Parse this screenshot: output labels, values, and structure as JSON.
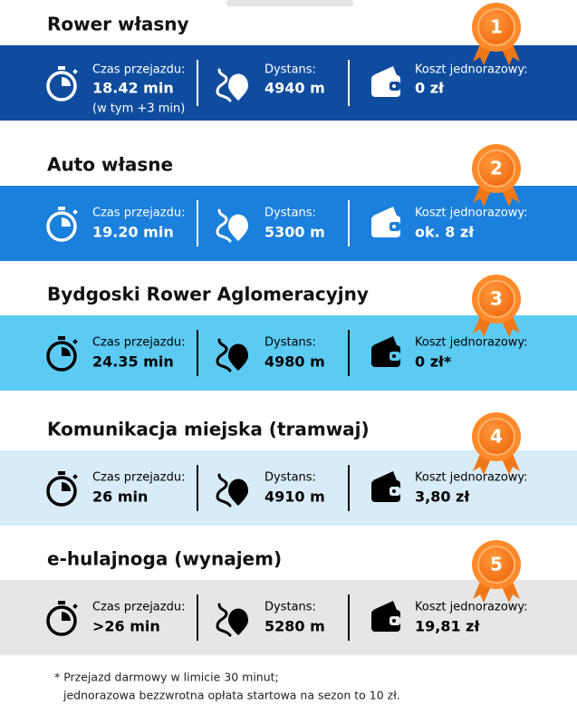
{
  "items": [
    {
      "rank": "1",
      "title": "Rower własny",
      "time_label": "Czas przejazdu:",
      "time": "18.42 min",
      "time_note": "(w tym +3 min)",
      "distance_label": "Dystans:",
      "distance": "4940 m",
      "cost_label": "Koszt jednorazowy:",
      "cost": "0 zł"
    },
    {
      "rank": "2",
      "title": "Auto własne",
      "time_label": "Czas przejazdu:",
      "time": "19.20 min",
      "distance_label": "Dystans:",
      "distance": "5300 m",
      "cost_label": "Koszt jednorazowy:",
      "cost": "ok. 8 zł"
    },
    {
      "rank": "3",
      "title": "Bydgoski Rower Aglomeracyjny",
      "time_label": "Czas przejazdu:",
      "time": "24.35 min",
      "distance_label": "Dystans:",
      "distance": "4980 m",
      "cost_label": "Koszt jednorazowy:",
      "cost": "0 zł*"
    },
    {
      "rank": "4",
      "title": "Komunikacja miejska (tramwaj)",
      "time_label": "Czas przejazdu:",
      "time": "26 min",
      "distance_label": "Dystans:",
      "distance": "4910 m",
      "cost_label": "Koszt jednorazowy:",
      "cost": "3,80 zł"
    },
    {
      "rank": "5",
      "title": "e-hulajnoga (wynajem)",
      "time_label": "Czas przejazdu:",
      "time": ">26 min",
      "distance_label": "Dystans:",
      "distance": "5280 m",
      "cost_label": "Koszt jednorazowy:",
      "cost": "19,81 zł"
    }
  ],
  "footnote": [
    "* Przejazd darmowy w limicie 30 minut;",
    "jednorazowa bezzwrotna opłata startowa na sezon to 10 zł."
  ]
}
